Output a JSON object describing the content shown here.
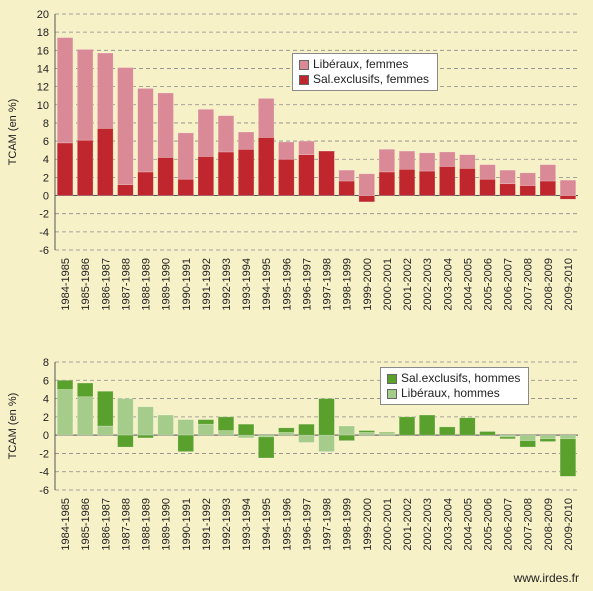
{
  "chart_data": [
    {
      "type": "bar",
      "stacked": true,
      "ylabel": "TCAM (en %)",
      "ylim": [
        -6,
        20
      ],
      "ytick_step": 2,
      "grid": "horizontal dashed",
      "legend_position": "top-right",
      "categories": [
        "1984-1985",
        "1985-1986",
        "1986-1987",
        "1987-1988",
        "1988-1989",
        "1989-1990",
        "1990-1991",
        "1991-1992",
        "1992-1993",
        "1993-1994",
        "1994-1995",
        "1995-1996",
        "1996-1997",
        "1997-1998",
        "1998-1999",
        "1999-2000",
        "2000-2001",
        "2001-2002",
        "2002-2003",
        "2003-2004",
        "2004-2005",
        "2005-2006",
        "2006-2007",
        "2007-2008",
        "2008-2009",
        "2009-2010"
      ],
      "series": [
        {
          "name": "Libéraux, femmes",
          "color": "#d98a96",
          "values": [
            11.6,
            10.0,
            8.3,
            12.9,
            9.2,
            7.1,
            5.1,
            5.2,
            4.0,
            1.9,
            4.3,
            1.9,
            1.5,
            0,
            1.2,
            2.4,
            2.5,
            2.0,
            2.0,
            1.6,
            1.5,
            1.6,
            1.5,
            1.4,
            1.8,
            1.7
          ]
        },
        {
          "name": "Sal.exclusifs, femmes",
          "color": "#c0262e",
          "values": [
            5.8,
            6.1,
            7.4,
            1.2,
            2.6,
            4.2,
            1.8,
            4.3,
            4.8,
            5.1,
            6.4,
            4.0,
            4.5,
            4.9,
            1.6,
            -0.7,
            2.6,
            2.9,
            2.7,
            3.2,
            3.0,
            1.8,
            1.3,
            1.1,
            1.6,
            -0.4
          ]
        }
      ]
    },
    {
      "type": "bar",
      "stacked": true,
      "ylabel": "TCAM (en %)",
      "ylim": [
        -6,
        8
      ],
      "ytick_step": 2,
      "grid": "horizontal dashed",
      "legend_position": "top-right",
      "categories": [
        "1984-1985",
        "1985-1986",
        "1986-1987",
        "1987-1988",
        "1988-1989",
        "1989-1990",
        "1990-1991",
        "1991-1992",
        "1992-1993",
        "1993-1994",
        "1994-1995",
        "1995-1996",
        "1996-1997",
        "1997-1998",
        "1998-1999",
        "1999-2000",
        "2000-2001",
        "2001-2002",
        "2002-2003",
        "2003-2004",
        "2004-2005",
        "2005-2006",
        "2006-2007",
        "2007-2008",
        "2008-2009",
        "2009-2010"
      ],
      "series": [
        {
          "name": "Sal.exclusifs, hommes",
          "color": "#5aa02c",
          "values": [
            1.0,
            1.5,
            3.8,
            -1.3,
            -0.3,
            0,
            -1.8,
            0.5,
            1.5,
            1.2,
            -2.3,
            0.5,
            1.2,
            4.0,
            -0.6,
            0.2,
            0.1,
            2.0,
            2.2,
            0.9,
            1.9,
            0.4,
            -0.2,
            -0.7,
            -0.3,
            -4.1
          ]
        },
        {
          "name": "Libéraux, hommes",
          "color": "#a5cc8a",
          "values": [
            5.0,
            4.2,
            1.0,
            4.0,
            3.1,
            2.2,
            1.7,
            1.2,
            0.5,
            -0.3,
            -0.2,
            0.3,
            -0.8,
            -1.8,
            1.0,
            0.3,
            0.2,
            0,
            0,
            0,
            0,
            0,
            -0.2,
            -0.6,
            -0.4,
            -0.4
          ]
        }
      ]
    }
  ],
  "credit": "www.irdes.fr"
}
